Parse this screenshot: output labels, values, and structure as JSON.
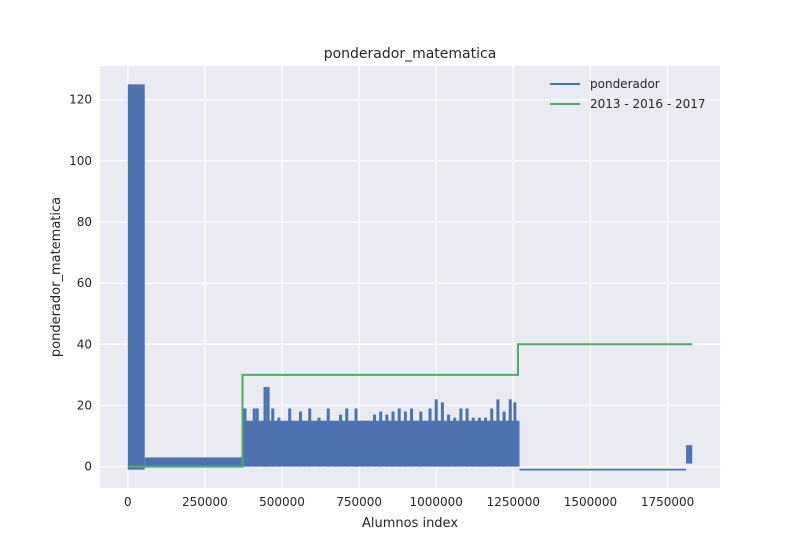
{
  "chart_data": {
    "type": "line",
    "title": "ponderador_matematica",
    "xlabel": "Alumnos index",
    "ylabel": "ponderador_matematica",
    "xlim": [
      -90000,
      1920000
    ],
    "ylim": [
      -7,
      131
    ],
    "xticks": [
      0,
      250000,
      500000,
      750000,
      1000000,
      1250000,
      1500000,
      1750000
    ],
    "yticks": [
      0,
      20,
      40,
      60,
      80,
      100,
      120
    ],
    "grid": true,
    "legend_position": "top-right",
    "series": [
      {
        "name": "ponderador",
        "color": "#4c72b0",
        "segments": [
          {
            "x_start": 0,
            "x_end": 55000,
            "y_low": -1,
            "y_high": 125
          },
          {
            "x_start": 55000,
            "x_end": 375000,
            "y_low": 0,
            "y_high": 3
          },
          {
            "x_start": 375000,
            "x_end": 1270000,
            "y_low": 0,
            "y_high": 15
          },
          {
            "x_start": 1810000,
            "x_end": 1830000,
            "y_low": 1,
            "y_high": 7
          }
        ],
        "spikes": [
          [
            380000,
            19
          ],
          [
            395000,
            14
          ],
          [
            410000,
            19
          ],
          [
            420000,
            19
          ],
          [
            445000,
            26
          ],
          [
            455000,
            26
          ],
          [
            470000,
            19
          ],
          [
            490000,
            16
          ],
          [
            525000,
            19
          ],
          [
            560000,
            18
          ],
          [
            590000,
            19
          ],
          [
            620000,
            16
          ],
          [
            650000,
            19
          ],
          [
            690000,
            17
          ],
          [
            710000,
            19
          ],
          [
            740000,
            19
          ],
          [
            760000,
            15
          ],
          [
            800000,
            17
          ],
          [
            820000,
            18
          ],
          [
            840000,
            17
          ],
          [
            860000,
            18
          ],
          [
            880000,
            19
          ],
          [
            900000,
            18
          ],
          [
            920000,
            19
          ],
          [
            950000,
            18
          ],
          [
            980000,
            19
          ],
          [
            1000000,
            22
          ],
          [
            1020000,
            21
          ],
          [
            1040000,
            17
          ],
          [
            1060000,
            16
          ],
          [
            1080000,
            19
          ],
          [
            1100000,
            19
          ],
          [
            1120000,
            16
          ],
          [
            1140000,
            16
          ],
          [
            1160000,
            16
          ],
          [
            1180000,
            19
          ],
          [
            1200000,
            22
          ],
          [
            1220000,
            18
          ],
          [
            1240000,
            22
          ],
          [
            1255000,
            21
          ]
        ],
        "line_points": [
          [
            1270000,
            -1
          ],
          [
            1810000,
            -1
          ]
        ]
      },
      {
        "name": "2013 - 2016 - 2017",
        "color": "#55a868",
        "points": [
          [
            0,
            0
          ],
          [
            372000,
            0
          ],
          [
            372000,
            30
          ],
          [
            1265000,
            30
          ],
          [
            1265000,
            40
          ],
          [
            1830000,
            40
          ]
        ]
      }
    ]
  }
}
